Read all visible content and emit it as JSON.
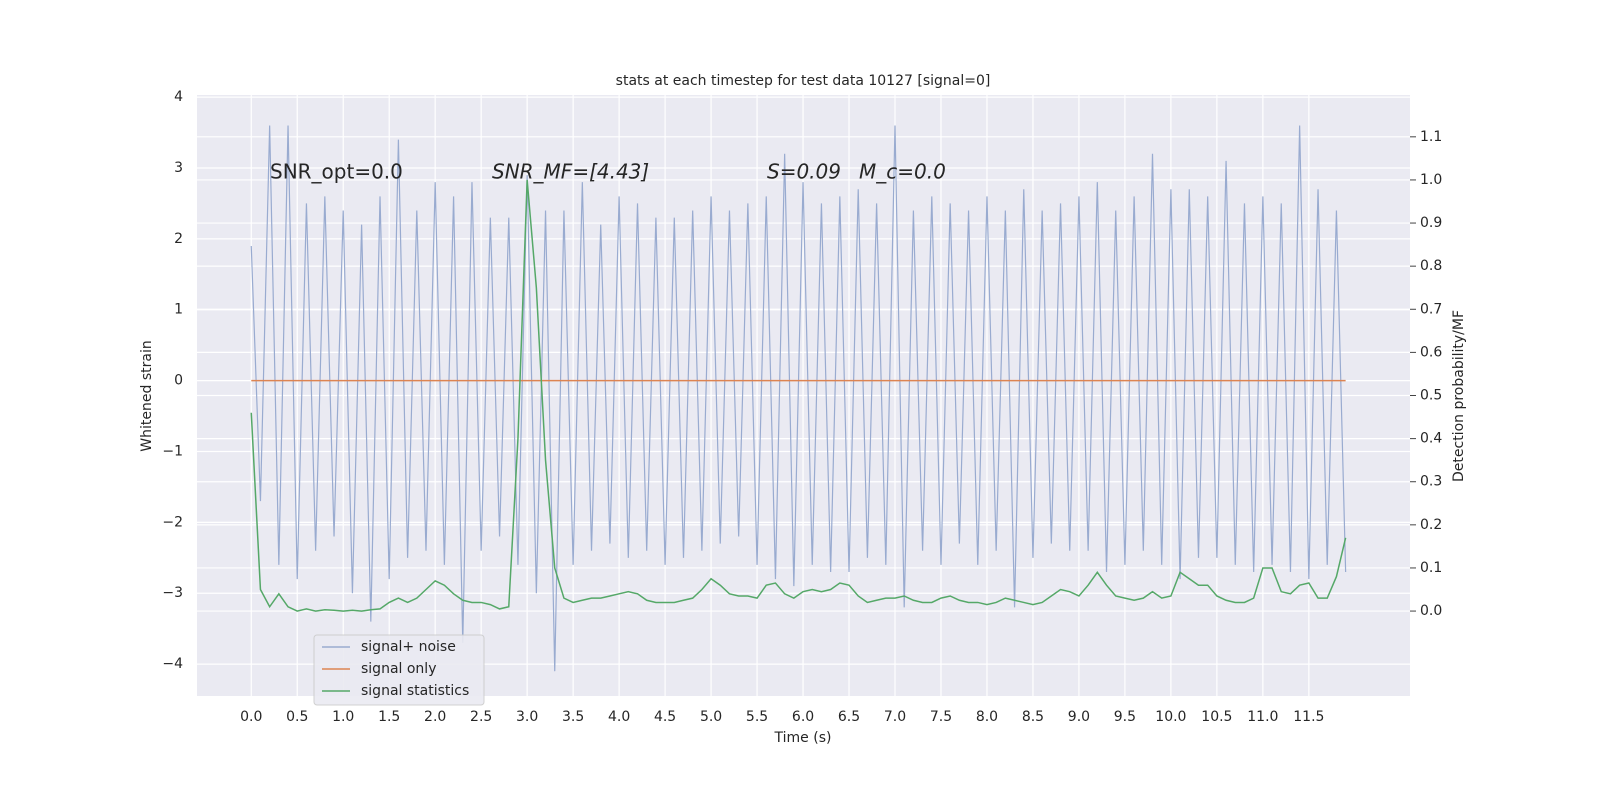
{
  "chart_data": {
    "type": "line",
    "title": "stats at each timestep for test data 10127 [signal=0]",
    "xlabel": "Time (s)",
    "ylabel": "Whitened strain",
    "y2label": "Detection probability/MF",
    "annotations": [
      "SNR_opt=0.0",
      "SNR_MF=[4.43]",
      "S=0.09",
      "M_c=0.0"
    ],
    "xlim": [
      -0.59,
      12.6
    ],
    "ylim": [
      -4.45,
      4.03
    ],
    "y2lim": [
      -0.197,
      1.197
    ],
    "xticks": [
      {
        "value": 0,
        "label": "0.0"
      },
      0.5,
      {
        "value": 1,
        "label": "1.0"
      },
      1.5,
      {
        "value": 2,
        "label": "2.0"
      },
      2.5,
      {
        "value": 3,
        "label": "3.0"
      },
      3.5,
      {
        "value": 4,
        "label": "4.0"
      },
      4.5,
      {
        "value": 5,
        "label": "5.0"
      },
      5.5,
      {
        "value": 6,
        "label": "6.0"
      },
      6.5,
      {
        "value": 7,
        "label": "7.0"
      },
      7.5,
      {
        "value": 8,
        "label": "8.0"
      },
      8.5,
      {
        "value": 9,
        "label": "9.0"
      },
      9.5,
      {
        "value": 10,
        "label": "10.0"
      },
      10.5,
      {
        "value": 11,
        "label": "11.0"
      },
      11.5
    ],
    "yticks": [
      {
        "value": -4,
        "label": "−4"
      },
      {
        "value": -3,
        "label": "−3"
      },
      {
        "value": -2,
        "label": "−2"
      },
      {
        "value": -1,
        "label": "−1"
      },
      0,
      1,
      2,
      3,
      4
    ],
    "y2ticks": [
      {
        "value": 0,
        "label": "0.0"
      },
      0.1,
      0.2,
      0.3,
      0.4,
      0.5,
      0.6,
      0.7,
      0.8,
      0.9,
      {
        "value": 1,
        "label": "1.0"
      },
      1.1
    ],
    "grid": true,
    "legend": "lower left",
    "x": [
      0,
      0.1,
      0.2,
      0.3,
      0.4,
      0.5,
      0.6,
      0.7,
      0.8,
      0.9,
      1,
      1.1,
      1.2,
      1.3,
      1.4,
      1.5,
      1.6,
      1.7,
      1.8,
      1.9,
      2,
      2.1,
      2.2,
      2.3,
      2.4,
      2.5,
      2.6,
      2.7,
      2.8,
      2.9,
      3,
      3.1,
      3.2,
      3.3,
      3.4,
      3.5,
      3.6,
      3.7,
      3.8,
      3.9,
      4,
      4.1,
      4.2,
      4.3,
      4.4,
      4.5,
      4.6,
      4.7,
      4.8,
      4.9,
      5,
      5.1,
      5.2,
      5.3,
      5.4,
      5.5,
      5.6,
      5.7,
      5.8,
      5.9,
      6,
      6.1,
      6.2,
      6.3,
      6.4,
      6.5,
      6.6,
      6.7,
      6.8,
      6.9,
      7,
      7.1,
      7.2,
      7.3,
      7.4,
      7.5,
      7.6,
      7.7,
      7.8,
      7.9,
      8,
      8.1,
      8.2,
      8.3,
      8.4,
      8.5,
      8.6,
      8.7,
      8.8,
      8.9,
      9,
      9.1,
      9.2,
      9.3,
      9.4,
      9.5,
      9.6,
      9.7,
      9.8,
      9.9,
      10,
      10.1,
      10.2,
      10.3,
      10.4,
      10.5,
      10.6,
      10.7,
      10.8,
      10.9,
      11,
      11.1,
      11.2,
      11.3,
      11.4,
      11.5,
      11.6,
      11.7,
      11.8,
      11.9
    ],
    "series": [
      {
        "name": "signal+ noise",
        "color": "#99abd0",
        "values": [
          1.9,
          -1.7,
          3.6,
          -2.6,
          3.6,
          -2.8,
          2.5,
          -2.4,
          2.6,
          -2.2,
          2.4,
          -3.0,
          2.2,
          -3.4,
          2.6,
          -2.8,
          3.4,
          -2.5,
          2.4,
          -2.4,
          2.8,
          -2.6,
          2.6,
          -3.7,
          2.8,
          -2.4,
          2.3,
          -2.2,
          2.3,
          -2.6,
          2.9,
          -3.0,
          2.4,
          -4.1,
          2.4,
          -2.6,
          2.8,
          -2.4,
          2.2,
          -2.3,
          2.6,
          -2.5,
          2.5,
          -2.4,
          2.3,
          -2.6,
          2.3,
          -2.5,
          2.4,
          -2.4,
          2.6,
          -2.3,
          2.4,
          -2.2,
          2.5,
          -2.6,
          2.6,
          -2.8,
          3.2,
          -2.9,
          2.8,
          -2.6,
          2.5,
          -2.7,
          2.6,
          -2.7,
          2.7,
          -2.5,
          2.5,
          -2.6,
          3.6,
          -3.2,
          2.4,
          -2.4,
          2.6,
          -2.6,
          2.5,
          -2.3,
          2.4,
          -2.6,
          2.6,
          -2.4,
          2.4,
          -3.2,
          2.7,
          -2.5,
          2.4,
          -2.3,
          2.5,
          -2.4,
          2.6,
          -2.4,
          2.8,
          -2.7,
          2.4,
          -2.6,
          2.6,
          -2.4,
          3.2,
          -2.6,
          2.7,
          -2.8,
          2.7,
          -2.5,
          2.6,
          -2.5,
          3.1,
          -2.6,
          2.5,
          -2.7,
          2.6,
          -2.6,
          2.5,
          -2.7,
          3.6,
          -2.8,
          2.7,
          -2.6,
          2.4,
          -2.7
        ]
      },
      {
        "name": "signal only",
        "color": "#dd8452",
        "values": [
          0,
          0,
          0,
          0,
          0,
          0,
          0,
          0,
          0,
          0,
          0,
          0,
          0,
          0,
          0,
          0,
          0,
          0,
          0,
          0,
          0,
          0,
          0,
          0,
          0,
          0,
          0,
          0,
          0,
          0,
          0,
          0,
          0,
          0,
          0,
          0,
          0,
          0,
          0,
          0,
          0,
          0,
          0,
          0,
          0,
          0,
          0,
          0,
          0,
          0,
          0,
          0,
          0,
          0,
          0,
          0,
          0,
          0,
          0,
          0,
          0,
          0,
          0,
          0,
          0,
          0,
          0,
          0,
          0,
          0,
          0,
          0,
          0,
          0,
          0,
          0,
          0,
          0,
          0,
          0,
          0,
          0,
          0,
          0,
          0,
          0,
          0,
          0,
          0,
          0,
          0,
          0,
          0,
          0,
          0,
          0,
          0,
          0,
          0,
          0,
          0,
          0,
          0,
          0,
          0,
          0,
          0,
          0,
          0,
          0,
          0,
          0,
          0,
          0,
          0,
          0,
          0,
          0,
          0,
          0
        ]
      },
      {
        "name": "signal statistics",
        "color": "#55a868",
        "axis": "y2",
        "values": [
          0.46,
          0.05,
          0.01,
          0.04,
          0.01,
          0,
          0.005,
          0,
          0.003,
          0.002,
          0,
          0.002,
          0,
          0.003,
          0.005,
          0.02,
          0.03,
          0.02,
          0.03,
          0.05,
          0.07,
          0.06,
          0.04,
          0.025,
          0.02,
          0.02,
          0.015,
          0.005,
          0.01,
          0.4,
          1.0,
          0.75,
          0.35,
          0.1,
          0.03,
          0.02,
          0.025,
          0.03,
          0.03,
          0.035,
          0.04,
          0.045,
          0.04,
          0.025,
          0.02,
          0.02,
          0.02,
          0.025,
          0.03,
          0.05,
          0.075,
          0.06,
          0.04,
          0.035,
          0.035,
          0.03,
          0.06,
          0.065,
          0.04,
          0.03,
          0.045,
          0.05,
          0.045,
          0.05,
          0.065,
          0.06,
          0.035,
          0.02,
          0.025,
          0.03,
          0.03,
          0.035,
          0.025,
          0.02,
          0.02,
          0.03,
          0.035,
          0.025,
          0.02,
          0.02,
          0.015,
          0.02,
          0.03,
          0.025,
          0.02,
          0.015,
          0.02,
          0.035,
          0.05,
          0.045,
          0.035,
          0.06,
          0.09,
          0.06,
          0.035,
          0.03,
          0.025,
          0.03,
          0.045,
          0.03,
          0.035,
          0.09,
          0.075,
          0.06,
          0.06,
          0.035,
          0.025,
          0.02,
          0.02,
          0.03,
          0.1,
          0.1,
          0.045,
          0.04,
          0.06,
          0.065,
          0.03,
          0.03,
          0.08,
          0.17
        ]
      }
    ]
  }
}
